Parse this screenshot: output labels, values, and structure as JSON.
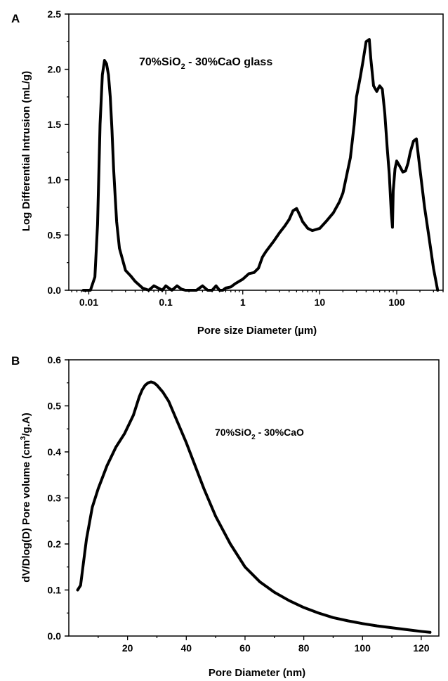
{
  "chart_data": [
    {
      "type": "line",
      "panel_label": "A",
      "annotation": "70%SiO2 - 30%CaO glass",
      "xlabel": "Pore size Diameter (µm)",
      "ylabel": "Log Differential Intrusion (mL/g)",
      "xscale": "log",
      "xlim": [
        0.0055,
        400
      ],
      "ylim": [
        0,
        2.5
      ],
      "grid": false,
      "xticks": [
        0.01,
        0.1,
        1,
        10,
        100
      ],
      "xtick_labels": [
        "0.01",
        "0.1",
        "1",
        "10",
        "100"
      ],
      "yticks": [
        0,
        0.5,
        1.0,
        1.5,
        2.0,
        2.5
      ],
      "ytick_labels": [
        "0.0",
        "0.5",
        "1.0",
        "1.5",
        "2.0",
        "2.5"
      ],
      "series": [
        {
          "x": [
            0.0085,
            0.0105,
            0.012,
            0.013,
            0.014,
            0.015,
            0.016,
            0.017,
            0.018,
            0.019,
            0.02,
            0.021,
            0.022,
            0.023,
            0.025,
            0.03,
            0.035,
            0.04,
            0.05,
            0.06,
            0.07,
            0.08,
            0.09,
            0.1,
            0.12,
            0.14,
            0.16,
            0.18,
            0.2,
            0.25,
            0.3,
            0.35,
            0.4,
            0.45,
            0.5,
            0.55,
            0.6,
            0.7,
            0.8,
            1.0,
            1.2,
            1.4,
            1.6,
            1.8,
            2.0,
            2.5,
            3.0,
            3.5,
            4.0,
            4.5,
            5.0,
            5.5,
            6.0,
            7.0,
            8.0,
            10,
            12,
            15,
            18,
            20,
            25,
            28,
            30,
            33,
            36,
            40,
            44,
            46,
            50,
            55,
            60,
            65,
            70,
            75,
            80,
            85,
            88,
            90,
            95,
            100,
            110,
            120,
            130,
            140,
            150,
            165,
            180,
            200,
            230,
            260,
            300,
            340
          ],
          "y": [
            0.0,
            0.0,
            0.12,
            0.6,
            1.5,
            1.95,
            2.08,
            2.05,
            1.95,
            1.75,
            1.45,
            1.1,
            0.85,
            0.62,
            0.38,
            0.18,
            0.13,
            0.08,
            0.02,
            0.0,
            0.04,
            0.02,
            0.0,
            0.04,
            0.0,
            0.04,
            0.01,
            0.0,
            0.0,
            0.0,
            0.04,
            0.0,
            0.0,
            0.04,
            0.0,
            0.0,
            0.02,
            0.03,
            0.06,
            0.1,
            0.15,
            0.16,
            0.2,
            0.3,
            0.35,
            0.44,
            0.52,
            0.58,
            0.64,
            0.72,
            0.74,
            0.68,
            0.62,
            0.56,
            0.54,
            0.56,
            0.62,
            0.7,
            0.8,
            0.88,
            1.2,
            1.5,
            1.75,
            1.9,
            2.05,
            2.25,
            2.27,
            2.1,
            1.85,
            1.8,
            1.85,
            1.82,
            1.6,
            1.3,
            1.05,
            0.7,
            0.57,
            0.9,
            1.1,
            1.17,
            1.12,
            1.07,
            1.08,
            1.15,
            1.25,
            1.35,
            1.37,
            1.1,
            0.75,
            0.5,
            0.2,
            0.0
          ]
        }
      ]
    },
    {
      "type": "line",
      "panel_label": "B",
      "annotation": "70%SiO2 - 30%CaO",
      "xlabel": "Pore Diameter (nm)",
      "ylabel": "dV/Dlog(D) Pore volume (cm3/g.A)",
      "xscale": "linear",
      "xlim": [
        0,
        126
      ],
      "ylim": [
        0,
        0.6
      ],
      "grid": false,
      "xticks": [
        20,
        40,
        60,
        80,
        100,
        120
      ],
      "xtick_labels": [
        "20",
        "40",
        "60",
        "80",
        "100",
        "120"
      ],
      "yticks": [
        0,
        0.1,
        0.2,
        0.3,
        0.4,
        0.5,
        0.6
      ],
      "ytick_labels": [
        "0.0",
        "0.1",
        "0.2",
        "0.3",
        "0.4",
        "0.5",
        "0.6"
      ],
      "series": [
        {
          "x": [
            3,
            4,
            5,
            6,
            8,
            10,
            13,
            16,
            19,
            22,
            24,
            25,
            26,
            27,
            28,
            29,
            30,
            32,
            34,
            36,
            38,
            40,
            43,
            46,
            50,
            55,
            60,
            65,
            70,
            75,
            80,
            85,
            90,
            95,
            100,
            105,
            110,
            115,
            120,
            123
          ],
          "y": [
            0.1,
            0.11,
            0.16,
            0.21,
            0.28,
            0.32,
            0.37,
            0.41,
            0.44,
            0.48,
            0.52,
            0.535,
            0.545,
            0.55,
            0.552,
            0.55,
            0.545,
            0.53,
            0.51,
            0.48,
            0.45,
            0.42,
            0.37,
            0.32,
            0.26,
            0.2,
            0.15,
            0.118,
            0.095,
            0.077,
            0.062,
            0.05,
            0.04,
            0.033,
            0.027,
            0.022,
            0.018,
            0.014,
            0.01,
            0.008
          ]
        }
      ]
    }
  ]
}
